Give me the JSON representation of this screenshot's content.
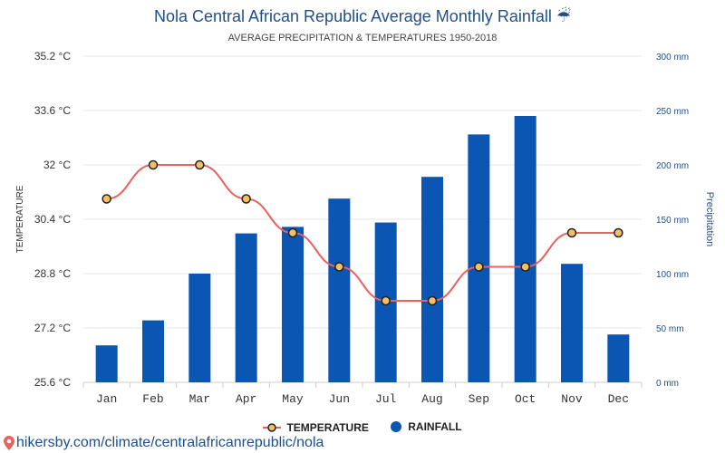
{
  "header": {
    "title": "Nola Central African Republic Average Monthly Rainfall ☔",
    "subtitle": "AVERAGE PRECIPITATION & TEMPERATURES 1950-2018"
  },
  "legend": {
    "temperature_label": "TEMPERATURE",
    "rainfall_label": "RAINFALL"
  },
  "footer": {
    "source_text": "hikersby.com/climate/centralafricanrepublic/nola",
    "icon": "location-pin-icon"
  },
  "colors": {
    "title": "#1f4e8c",
    "bar": "#0b55b3",
    "line": "#e8625f",
    "marker_fill": "#f5c063",
    "marker_stroke": "#222222",
    "right_axis": "#1f4e8c"
  },
  "chart_data": {
    "type": "bar+line",
    "categories": [
      "Jan",
      "Feb",
      "Mar",
      "Apr",
      "May",
      "Jun",
      "Jul",
      "Aug",
      "Sep",
      "Oct",
      "Nov",
      "Dec"
    ],
    "series": [
      {
        "name": "RAINFALL",
        "type": "bar",
        "axis": "right",
        "unit": "mm",
        "values": [
          34,
          57,
          100,
          137,
          143,
          169,
          147,
          189,
          228,
          245,
          109,
          44
        ]
      },
      {
        "name": "TEMPERATURE",
        "type": "line",
        "axis": "left",
        "unit": "°C",
        "values": [
          31.0,
          32.0,
          32.0,
          31.0,
          30.0,
          29.0,
          28.0,
          28.0,
          29.0,
          29.0,
          30.0,
          30.0
        ]
      }
    ],
    "left_axis": {
      "label": "TEMPERATURE",
      "ylim": [
        25.6,
        35.2
      ],
      "ticks": [
        "25.6 °C",
        "27.2 °C",
        "28.8 °C",
        "30.4 °C",
        "32 °C",
        "33.6 °C",
        "35.2 °C"
      ]
    },
    "right_axis": {
      "label": "Precipitation",
      "ylim": [
        0,
        300
      ],
      "ticks": [
        "0 mm",
        "50 mm",
        "100 mm",
        "150 mm",
        "200 mm",
        "250 mm",
        "300 mm"
      ]
    },
    "grid": true,
    "legend_position": "bottom-center"
  }
}
